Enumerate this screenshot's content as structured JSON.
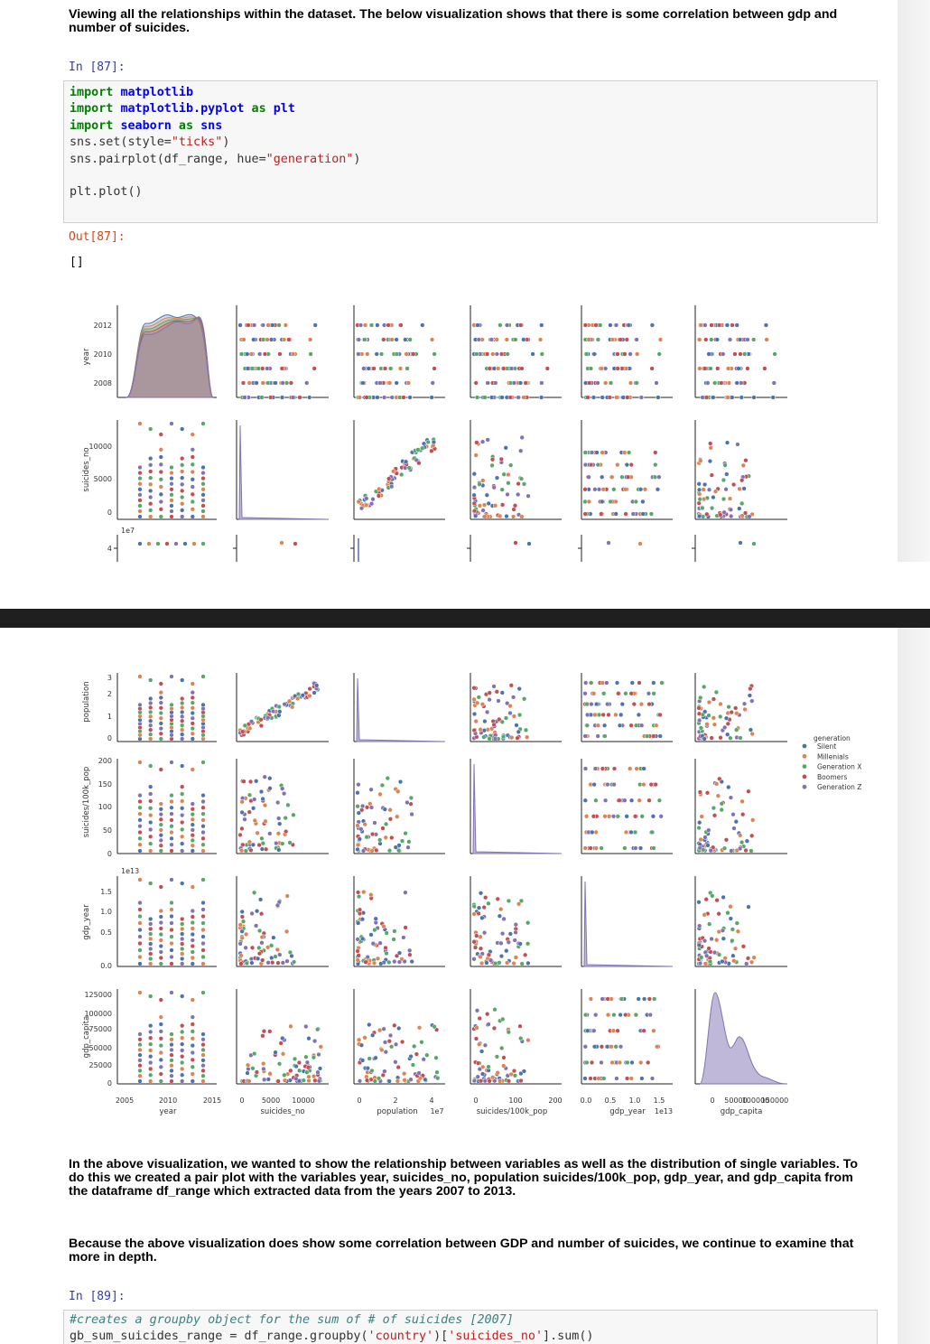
{
  "intro_text": "Viewing all the relationships within the dataset. The below visualization shows that there is some correlation between gdp and number of suicides.",
  "cell87": {
    "in_prompt": "In [87]:",
    "out_prompt": "Out[87]:",
    "output_text": "[]"
  },
  "cell89": {
    "in_prompt": "In [89]:"
  },
  "para1": "In the above visualization, we wanted to show the relationship between variables as well as the distribution of single variables. To do this we created a pair plot with the variables year, suicides_no, population suicides/100k_pop, gdp_year, and gdp_capita from the dataframe df_range which extracted data from the years 2007 to 2013.",
  "para2": "Because the above visualization does show some correlation between GDP and number of suicides, we continue to examine that more in depth.",
  "colors": {
    "Silent": "#4c72b0",
    "Millenials": "#dd8452",
    "Generation X": "#55a868",
    "Boomers": "#c44e52",
    "Generation Z": "#8172b3"
  },
  "chart_data": {
    "type": "scatter",
    "variables": [
      "year",
      "suicides_no",
      "population",
      "suicides/100k_pop",
      "gdp_year",
      "gdp_capita"
    ],
    "hue": "generation",
    "legend_title": "generation",
    "legend": [
      "Silent",
      "Millenials",
      "Generation X",
      "Boomers",
      "Generation Z"
    ],
    "legend_position": "right",
    "axes": {
      "year": {
        "label": "year",
        "range": [
          2005,
          2015
        ],
        "ticks": [
          "2005",
          "2010",
          "2015"
        ],
        "row_ticks": [
          "2008",
          "2010",
          "2012"
        ]
      },
      "suicides_no": {
        "label": "suicides_no",
        "range": [
          -500,
          12500
        ],
        "ticks": [
          "0",
          "5000",
          "10000"
        ],
        "row_ticks": [
          "0",
          "5000",
          "10000"
        ]
      },
      "population": {
        "label": "population",
        "range": [
          -0.2,
          4.8
        ],
        "ticks": [
          "0",
          "2",
          "4"
        ],
        "offset": "1e7",
        "row_ticks": [
          "0",
          "1",
          "2",
          "3",
          "4"
        ]
      },
      "suicides/100k_pop": {
        "label": "suicides/100k_pop",
        "range": [
          -5,
          225
        ],
        "ticks": [
          "0",
          "100",
          "200"
        ],
        "row_ticks": [
          "0",
          "50",
          "100",
          "150",
          "200"
        ]
      },
      "gdp_year": {
        "label": "gdp_year",
        "range": [
          -0.05,
          1.75
        ],
        "ticks": [
          "0.0",
          "0.5",
          "1.0",
          "1.5"
        ],
        "offset": "1e13",
        "row_ticks": [
          "0.0",
          "0.5",
          "1.0",
          "1.5"
        ]
      },
      "gdp_capita": {
        "label": "gdp_capita",
        "range": [
          -5000,
          160000
        ],
        "ticks": [
          "0",
          "50000",
          "100000",
          "150000"
        ],
        "row_ticks": [
          "0",
          "25000",
          "50000",
          "75000",
          "100000",
          "125000"
        ]
      }
    },
    "kde_year_peaks": [
      2008,
      2013
    ],
    "gdp_capita_kde_modes": [
      10000,
      55000,
      120000
    ]
  },
  "code87": [
    [
      [
        "kw",
        "import "
      ],
      [
        "mod",
        "matplotlib"
      ]
    ],
    [
      [
        "kw",
        "import "
      ],
      [
        "mod",
        "matplotlib.pyplot"
      ],
      [
        "kw",
        " as "
      ],
      [
        "mod",
        "plt"
      ]
    ],
    [
      [
        "kw",
        "import "
      ],
      [
        "mod",
        "seaborn"
      ],
      [
        "kw",
        " as "
      ],
      [
        "mod",
        "sns"
      ]
    ],
    [
      [
        "plain",
        "sns.set(style="
      ],
      [
        "str",
        "\"ticks\""
      ],
      [
        "plain",
        ")"
      ]
    ],
    [
      [
        "plain",
        "sns.pairplot(df_range, hue="
      ],
      [
        "str",
        "\"generation\""
      ],
      [
        "plain",
        ")"
      ]
    ],
    [
      [
        "plain",
        ""
      ]
    ],
    [
      [
        "plain",
        "plt.plot()"
      ]
    ]
  ],
  "code89": [
    [
      [
        "cm",
        "#creates a groupby object for the sum of # of suicides [2007]"
      ]
    ],
    [
      [
        "plain",
        "gb_sum_suicides_range = df_range.groupby("
      ],
      [
        "str",
        "'country'"
      ],
      [
        "plain",
        ")["
      ],
      [
        "str",
        "'suicides_no'"
      ],
      [
        "plain",
        "].sum()"
      ]
    ]
  ]
}
